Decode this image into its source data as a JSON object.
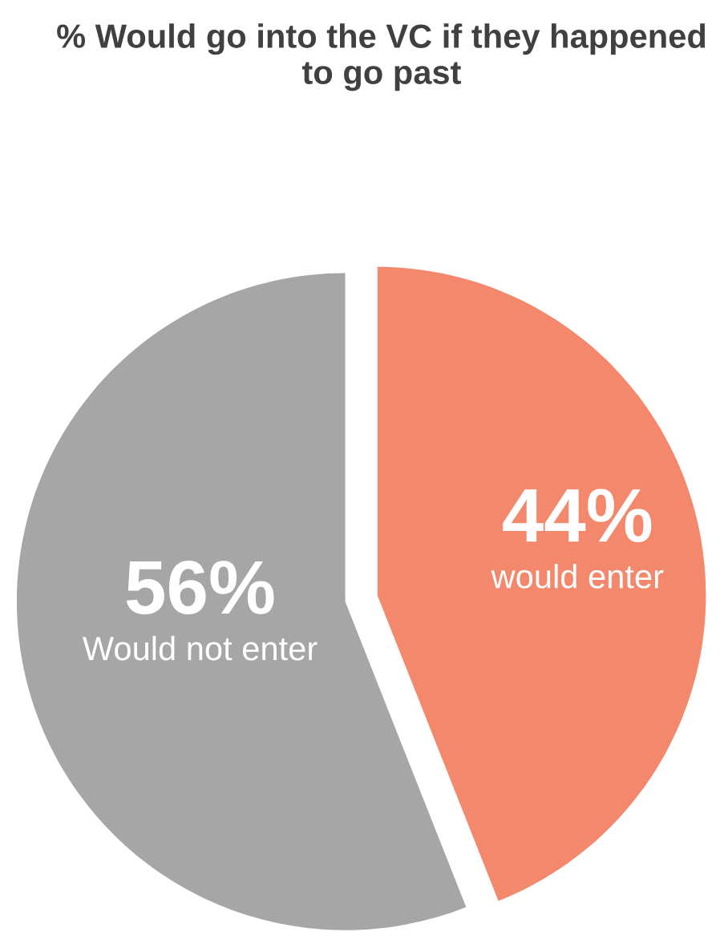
{
  "chart_data": {
    "type": "pie",
    "title": "% Would go into the VC if they happened to go past",
    "categories": [
      "would enter",
      "Would not enter"
    ],
    "values": [
      44,
      56
    ],
    "value_labels": [
      "44%",
      "56%"
    ],
    "colors": [
      "#f4886d",
      "#a6a6a6"
    ]
  }
}
